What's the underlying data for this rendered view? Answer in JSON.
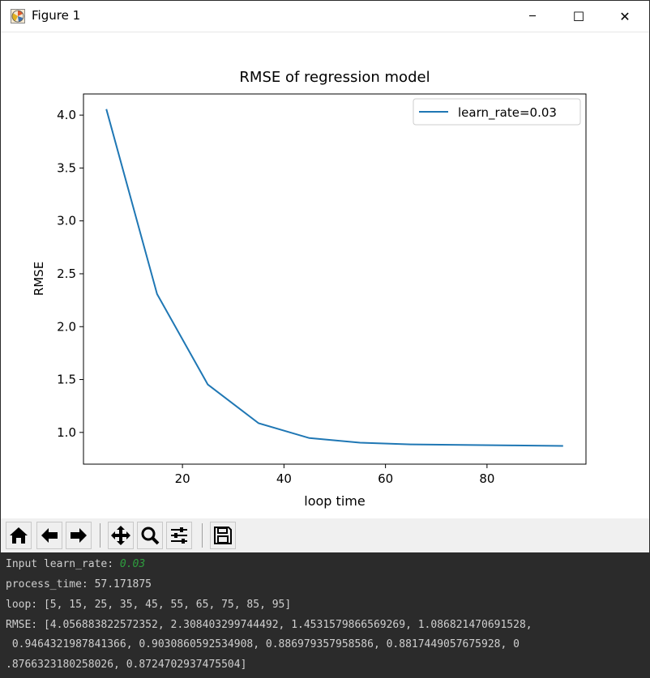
{
  "window": {
    "title": "Figure 1",
    "app_icon": "matplotlib-icon",
    "controls": {
      "minimize": "─",
      "maximize": "☐",
      "close": "✕"
    }
  },
  "chart_data": {
    "type": "line",
    "title": "RMSE of regression model",
    "xlabel": "loop time",
    "ylabel": "RMSE",
    "xlim": [
      0.5,
      99.5
    ],
    "ylim": [
      0.7,
      4.2
    ],
    "xticks": [
      20,
      40,
      60,
      80
    ],
    "yticks": [
      1.0,
      1.5,
      2.0,
      2.5,
      3.0,
      3.5,
      4.0
    ],
    "xtick_labels": [
      "20",
      "40",
      "60",
      "80"
    ],
    "ytick_labels": [
      "1.0",
      "1.5",
      "2.0",
      "2.5",
      "3.0",
      "3.5",
      "4.0"
    ],
    "grid": false,
    "legend": "upper right",
    "series": [
      {
        "name": "learn_rate=0.03",
        "color": "#1f77b4",
        "x": [
          5,
          15,
          25,
          35,
          45,
          55,
          65,
          75,
          85,
          95
        ],
        "y": [
          4.056883822572352,
          2.308403299744492,
          1.4531579866569269,
          1.086821470691528,
          0.9464321987841366,
          0.9030860592534908,
          0.886979357958586,
          0.8817449057675928,
          0.8766323180258025,
          0.8724702937475504
        ]
      }
    ]
  },
  "toolbar": {
    "buttons": [
      "home-icon",
      "back-arrow-icon",
      "forward-arrow-icon",
      "pan-icon",
      "zoom-icon",
      "configure-subplots-icon",
      "save-icon"
    ]
  },
  "console": {
    "line1_prefix": "Input learn_rate: ",
    "line1_value": "0.03",
    "line2": "process_time: 57.171875",
    "line3": "loop: [5, 15, 25, 35, 45, 55, 65, 75, 85, 95]",
    "line4": "RMSE: [4.056883822572352, 2.308403299744492, 1.4531579866569269, 1.086821470691528,",
    "line5": " 0.9464321987841366, 0.9030860592534908, 0.886979357958586, 0.8817449057675928, 0",
    "line6": ".8766323180258026, 0.8724702937475504]",
    "accent_color": "#2e9e3e"
  }
}
